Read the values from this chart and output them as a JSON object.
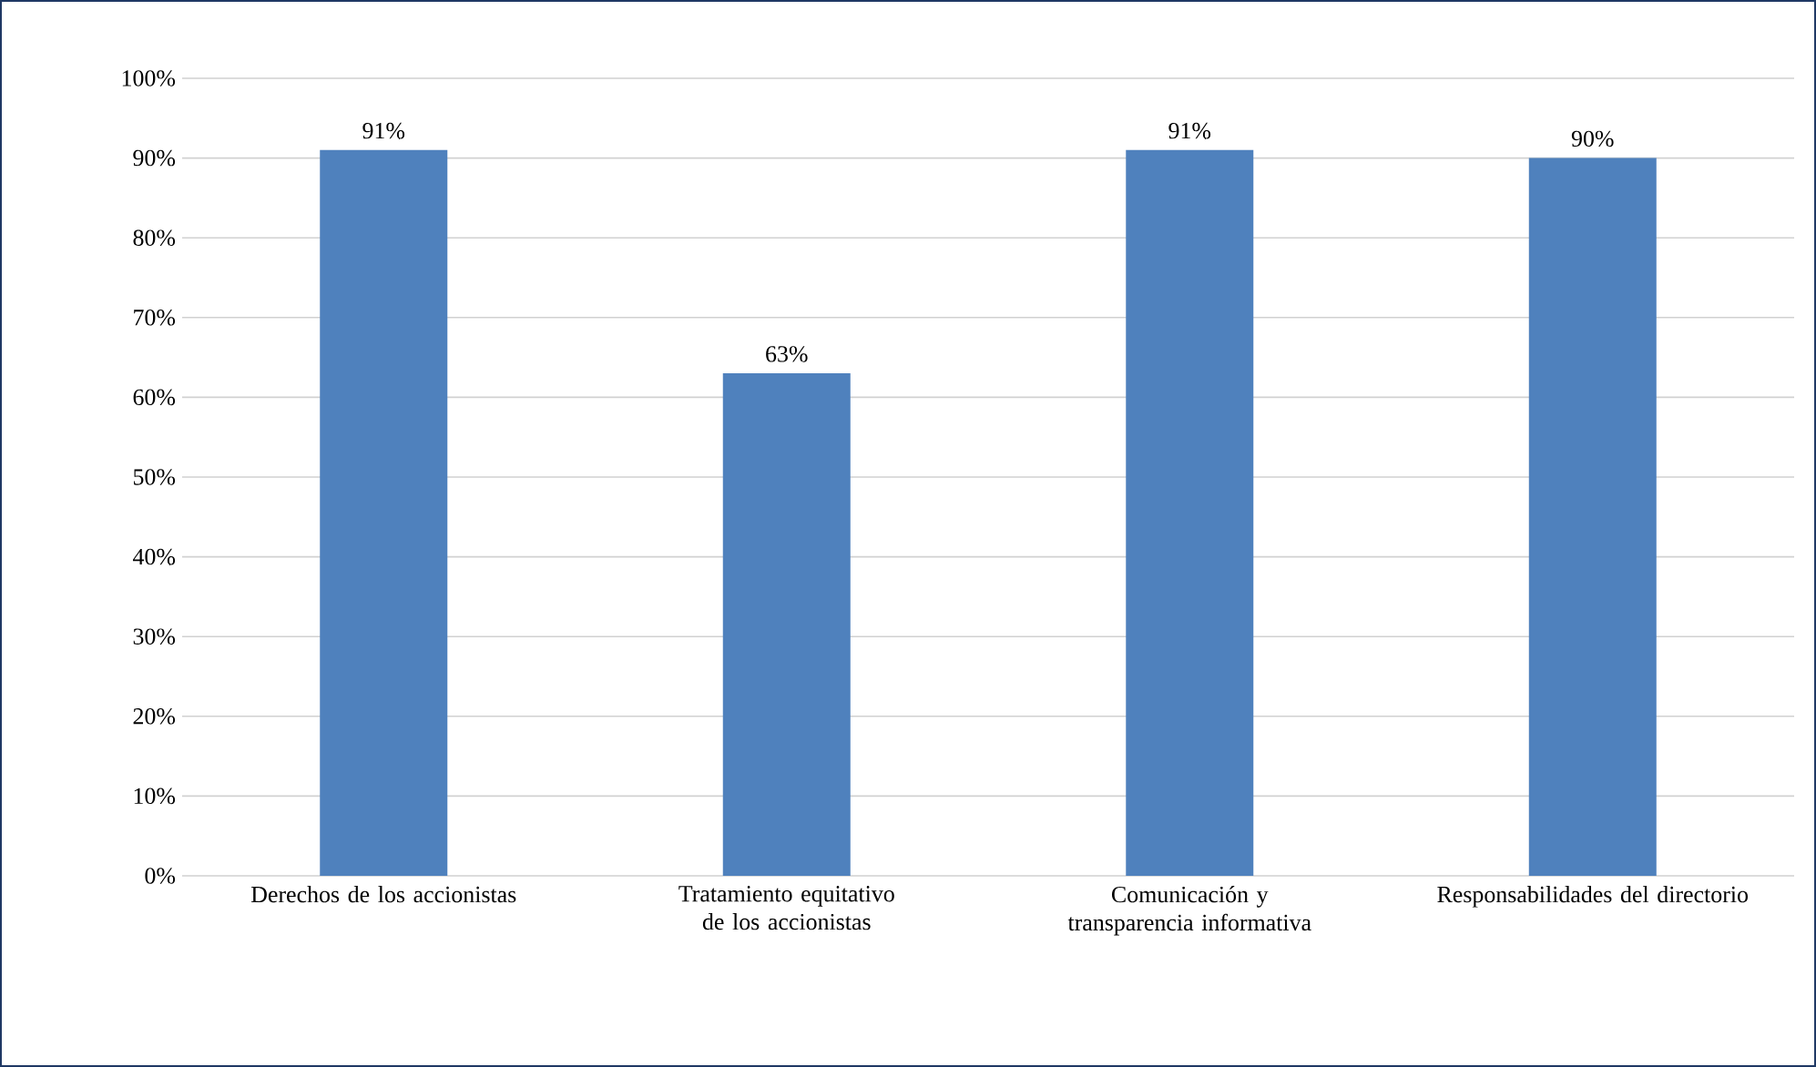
{
  "chart_data": {
    "type": "bar",
    "categories": [
      "Derechos de los accionistas",
      "Tratamiento equitativo de los accionistas",
      "Comunicación y transparencia informativa",
      "Responsabilidades del directorio"
    ],
    "values": [
      91,
      63,
      91,
      90
    ],
    "value_labels": [
      "91%",
      "63%",
      "91%",
      "90%"
    ],
    "color": "#4f81bd",
    "ylim": [
      0,
      100
    ],
    "yticks": [
      {
        "value": 0,
        "label": "0%"
      },
      {
        "value": 10,
        "label": "10%"
      },
      {
        "value": 20,
        "label": "20%"
      },
      {
        "value": 30,
        "label": "30%"
      },
      {
        "value": 40,
        "label": "40%"
      },
      {
        "value": 50,
        "label": "50%"
      },
      {
        "value": 60,
        "label": "60%"
      },
      {
        "value": 70,
        "label": "70%"
      },
      {
        "value": 80,
        "label": "80%"
      },
      {
        "value": 90,
        "label": "90%"
      },
      {
        "value": 100,
        "label": "100%"
      }
    ],
    "grid": "y"
  }
}
